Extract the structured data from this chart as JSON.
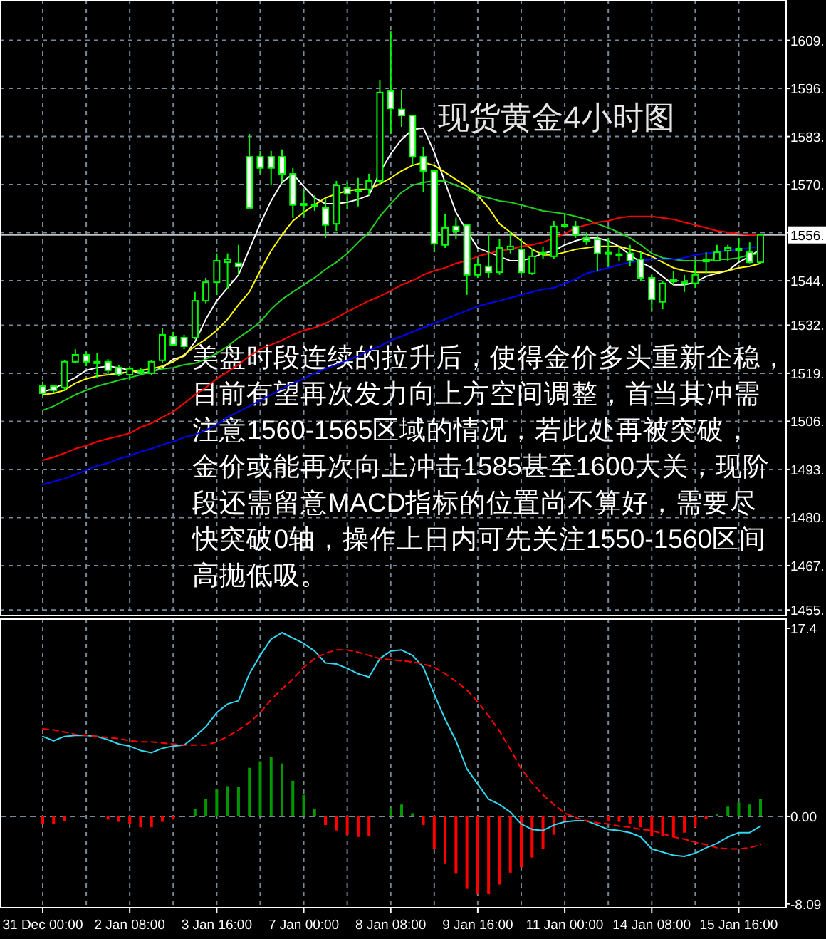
{
  "chart_data": [
    {
      "type": "candlestick",
      "title": "现货黄金4小时图",
      "annotations": [
        "美盘时段连续的拉升后，使得金价多头重新企稳，",
        "目前有望再次发力向上方空间调整，首当其冲需",
        "注意1560-1565区域的情况，若此处再被突破，",
        "金价或能再次向上冲击1585甚至1600大关，现阶",
        "段还需留意MACD指标的位置尚不算好，需要尽",
        "快突破0轴，操作上日内可先关注1550-1560区间",
        "高抛低吸。"
      ],
      "categories": [
        null,
        null,
        null,
        null,
        null,
        null,
        null,
        null,
        null,
        null,
        null,
        null,
        null,
        null,
        null,
        null,
        null,
        null,
        null,
        null,
        null,
        null,
        null,
        null,
        null,
        null,
        null,
        null,
        null,
        null,
        null,
        null,
        null,
        null,
        null,
        null,
        null,
        null,
        null,
        null,
        null,
        null,
        null,
        null,
        null,
        null,
        null,
        null,
        null,
        null,
        null,
        null,
        null,
        null,
        null,
        null,
        null,
        null,
        null,
        null,
        null,
        null,
        null,
        null,
        null,
        null,
        null
      ],
      "ohlc": [
        [
          1515.5,
          1516.7,
          1512.8,
          1513.6
        ],
        [
          1515.5,
          1515.9,
          1513.6,
          1514.4
        ],
        [
          1515.1,
          1522.5,
          1514.4,
          1522.1
        ],
        [
          1522.1,
          1525.5,
          1521.7,
          1524.0
        ],
        [
          1524.0,
          1524.8,
          1520.9,
          1522.1
        ],
        [
          1521.7,
          1524.4,
          1517.8,
          1522.1
        ],
        [
          1522.1,
          1522.8,
          1518.6,
          1519.8
        ],
        [
          1520.5,
          1521.3,
          1518.2,
          1518.6
        ],
        [
          1518.6,
          1520.9,
          1517.1,
          1520.2
        ],
        [
          1519.6,
          1520.5,
          1518.6,
          1519.8
        ],
        [
          1519.0,
          1522.5,
          1518.6,
          1522.1
        ],
        [
          1522.5,
          1531.3,
          1521.7,
          1529.4
        ],
        [
          1529.0,
          1530.2,
          1526.3,
          1526.7
        ],
        [
          1528.6,
          1529.4,
          1525.5,
          1526.3
        ],
        [
          1528.6,
          1541.0,
          1528.2,
          1538.6
        ],
        [
          1538.6,
          1544.8,
          1537.9,
          1543.6
        ],
        [
          1543.6,
          1551.4,
          1540.2,
          1549.4
        ],
        [
          1549.0,
          1551.4,
          1541.7,
          1549.8
        ],
        [
          1548.7,
          1553.7,
          1545.6,
          1547.9
        ],
        [
          1577.5,
          1583.7,
          1563.7,
          1563.7
        ],
        [
          1577.5,
          1579.1,
          1572.9,
          1574.5
        ],
        [
          1577.5,
          1579.1,
          1569.8,
          1574.5
        ],
        [
          1577.5,
          1579.5,
          1570.6,
          1572.9
        ],
        [
          1572.9,
          1574.5,
          1561.0,
          1564.5
        ],
        [
          1564.5,
          1568.7,
          1561.4,
          1564.8
        ],
        [
          1564.5,
          1567.1,
          1562.9,
          1564.1
        ],
        [
          1563.7,
          1566.0,
          1555.6,
          1559.1
        ],
        [
          1559.4,
          1571.0,
          1557.5,
          1569.8
        ],
        [
          1569.1,
          1570.6,
          1563.3,
          1567.5
        ],
        [
          1568.1,
          1571.8,
          1564.1,
          1568.5
        ],
        [
          1568.7,
          1572.9,
          1567.1,
          1571.0
        ],
        [
          1571.0,
          1598.3,
          1569.8,
          1594.9
        ],
        [
          1595.3,
          1611.4,
          1583.7,
          1590.6
        ],
        [
          1590.3,
          1595.7,
          1585.6,
          1588.7
        ],
        [
          1588.7,
          1588.7,
          1575.2,
          1577.5
        ],
        [
          1577.5,
          1580.2,
          1567.9,
          1573.7
        ],
        [
          1573.7,
          1573.7,
          1551.7,
          1554.0
        ],
        [
          1553.7,
          1562.1,
          1552.9,
          1558.3
        ],
        [
          1558.7,
          1561.0,
          1555.2,
          1557.5
        ],
        [
          1559.1,
          1559.1,
          1540.2,
          1545.6
        ],
        [
          1545.6,
          1549.8,
          1544.8,
          1548.3
        ],
        [
          1547.9,
          1556.7,
          1544.8,
          1546.3
        ],
        [
          1546.3,
          1555.2,
          1545.6,
          1552.9
        ],
        [
          1552.5,
          1557.1,
          1551.4,
          1553.3
        ],
        [
          1552.5,
          1555.6,
          1545.6,
          1546.3
        ],
        [
          1546.0,
          1552.5,
          1545.6,
          1550.6
        ],
        [
          1551.2,
          1553.3,
          1549.8,
          1551.6
        ],
        [
          1550.6,
          1560.2,
          1549.8,
          1558.7
        ],
        [
          1558.7,
          1562.1,
          1558.3,
          1559.1
        ],
        [
          1558.7,
          1560.2,
          1555.6,
          1556.4
        ],
        [
          1555.6,
          1557.1,
          1553.7,
          1554.8
        ],
        [
          1555.2,
          1556.4,
          1546.7,
          1551.4
        ],
        [
          1551.2,
          1555.6,
          1547.9,
          1551.6
        ],
        [
          1551.0,
          1553.3,
          1549.4,
          1551.2
        ],
        [
          1551.4,
          1553.7,
          1547.9,
          1549.4
        ],
        [
          1549.8,
          1551.7,
          1544.0,
          1544.8
        ],
        [
          1544.8,
          1545.6,
          1535.9,
          1539.0
        ],
        [
          1538.3,
          1544.0,
          1536.3,
          1543.3
        ],
        [
          1543.8,
          1546.7,
          1542.9,
          1544.2
        ],
        [
          1543.3,
          1545.6,
          1541.0,
          1543.6
        ],
        [
          1543.3,
          1549.4,
          1542.1,
          1545.6
        ],
        [
          1549.2,
          1551.7,
          1546.0,
          1549.6
        ],
        [
          1549.4,
          1553.7,
          1549.4,
          1551.7
        ],
        [
          1552.1,
          1553.7,
          1549.4,
          1552.9
        ],
        [
          1552.3,
          1555.6,
          1549.4,
          1552.7
        ],
        [
          1551.7,
          1554.4,
          1548.7,
          1549.0
        ],
        [
          1549.0,
          1556.4,
          1548.7,
          1556.4
        ]
      ],
      "color": "#00ff00",
      "colors": [
        "#ffffff",
        "#ffffff",
        "#000000",
        "#000000",
        "#ffffff",
        "#000000",
        "#ffffff",
        "#ffffff",
        "#000000",
        "#000000",
        "#000000",
        "#000000",
        "#ffffff",
        "#ffffff",
        "#000000",
        "#000000",
        "#000000",
        "#000000",
        "#ffffff",
        "#ffffff",
        "#ffffff",
        "#ffffff",
        "#ffffff",
        "#ffffff",
        "#000000",
        "#ffffff",
        "#ffffff",
        "#000000",
        "#ffffff",
        "#000000",
        "#000000",
        "#000000",
        "#ffffff",
        "#ffffff",
        "#ffffff",
        "#ffffff",
        "#ffffff",
        "#000000",
        "#ffffff",
        "#ffffff",
        "#000000",
        "#ffffff",
        "#000000",
        "#000000",
        "#ffffff",
        "#000000",
        "#000000",
        "#000000",
        "#000000",
        "#ffffff",
        "#ffffff",
        "#ffffff",
        "#000000",
        "#000000",
        "#ffffff",
        "#ffffff",
        "#ffffff",
        "#000000",
        "#000000",
        "#000000",
        "#000000",
        "#000000",
        "#000000",
        "#000000",
        "#000000",
        "#ffffff",
        "#000000"
      ],
      "series": [
        {
          "type": "line",
          "color": "#ffffff",
          "values": [
            1514.0,
            1514.8,
            1516.3,
            1517.8,
            1519.8,
            1520.5,
            1520.9,
            1520.5,
            1519.8,
            1519.0,
            1519.4,
            1520.5,
            1522.8,
            1523.6,
            1527.5,
            1533.6,
            1538.6,
            1542.1,
            1545.6,
            1552.5,
            1559.4,
            1565.6,
            1570.6,
            1572.9,
            1569.5,
            1566.4,
            1564.8,
            1564.8,
            1565.2,
            1566.0,
            1567.1,
            1573.3,
            1578.3,
            1582.2,
            1584.9,
            1585.3,
            1578.7,
            1570.6,
            1562.5,
            1557.5,
            1552.9,
            1551.7,
            1550.6,
            1549.4,
            1549.4,
            1550.2,
            1551.4,
            1552.1,
            1553.7,
            1554.8,
            1555.6,
            1555.6,
            1554.8,
            1553.3,
            1551.0,
            1549.0,
            1547.5,
            1545.2,
            1542.9,
            1542.9,
            1543.6,
            1545.2,
            1546.0,
            1546.7,
            1549.0,
            1550.6,
            1552.5
          ]
        },
        {
          "type": "line",
          "color": "#ffff00",
          "values": [
            1513.2,
            1513.6,
            1514.4,
            1516.3,
            1517.5,
            1518.2,
            1518.6,
            1519.0,
            1519.4,
            1519.8,
            1520.2,
            1520.9,
            1522.1,
            1524.0,
            1526.3,
            1528.2,
            1530.6,
            1533.6,
            1537.5,
            1541.0,
            1546.7,
            1552.1,
            1556.4,
            1560.2,
            1562.5,
            1564.5,
            1566.4,
            1567.5,
            1568.3,
            1568.7,
            1568.7,
            1570.2,
            1571.8,
            1573.7,
            1575.2,
            1576.0,
            1575.2,
            1573.3,
            1571.4,
            1569.5,
            1567.1,
            1563.7,
            1559.4,
            1557.1,
            1554.8,
            1552.5,
            1551.0,
            1551.0,
            1551.7,
            1552.5,
            1552.9,
            1553.3,
            1553.3,
            1553.3,
            1552.5,
            1551.7,
            1550.6,
            1549.0,
            1547.5,
            1546.7,
            1546.3,
            1546.3,
            1546.3,
            1546.7,
            1547.5,
            1547.9,
            1548.7
          ]
        },
        {
          "type": "line",
          "color": "#22d022",
          "values": [
            1509.0,
            1510.1,
            1511.7,
            1513.2,
            1514.4,
            1515.5,
            1516.3,
            1517.1,
            1517.8,
            1518.6,
            1519.4,
            1520.2,
            1520.5,
            1521.3,
            1521.7,
            1522.8,
            1524.4,
            1526.3,
            1528.6,
            1530.6,
            1532.9,
            1536.3,
            1539.0,
            1541.0,
            1542.9,
            1544.8,
            1547.1,
            1549.0,
            1551.4,
            1554.4,
            1557.1,
            1561.4,
            1564.8,
            1567.9,
            1569.8,
            1570.6,
            1571.0,
            1571.0,
            1569.8,
            1568.7,
            1567.1,
            1566.4,
            1565.6,
            1565.2,
            1564.5,
            1563.7,
            1562.9,
            1562.5,
            1562.1,
            1561.4,
            1560.6,
            1559.4,
            1558.3,
            1557.1,
            1555.6,
            1553.7,
            1551.4,
            1550.2,
            1549.8,
            1549.4,
            1549.4,
            1549.4,
            1549.8,
            1549.8,
            1550.2,
            1551.0,
            1551.4
          ]
        },
        {
          "type": "line",
          "color": "#ff0000",
          "values": [
            1495.5,
            1496.3,
            1497.4,
            1498.6,
            1499.4,
            1500.5,
            1501.3,
            1502.0,
            1502.8,
            1504.4,
            1505.5,
            1507.1,
            1508.6,
            1510.9,
            1513.2,
            1515.1,
            1517.5,
            1519.4,
            1521.3,
            1523.6,
            1525.5,
            1526.7,
            1527.9,
            1529.4,
            1530.6,
            1531.3,
            1532.5,
            1534.0,
            1535.6,
            1537.1,
            1538.6,
            1539.8,
            1541.3,
            1542.9,
            1544.0,
            1545.6,
            1546.7,
            1547.5,
            1548.7,
            1549.4,
            1550.6,
            1551.4,
            1552.1,
            1552.5,
            1553.3,
            1553.7,
            1554.4,
            1555.6,
            1556.7,
            1558.3,
            1559.1,
            1559.8,
            1560.2,
            1561.0,
            1561.4,
            1561.4,
            1561.4,
            1561.0,
            1560.6,
            1559.8,
            1559.1,
            1558.3,
            1557.5,
            1557.1,
            1556.7,
            1556.4,
            1556.4
          ]
        },
        {
          "type": "line",
          "color": "#0000ff",
          "values": [
            1488.9,
            1489.7,
            1490.5,
            1491.6,
            1492.8,
            1494.0,
            1494.7,
            1495.9,
            1496.7,
            1497.8,
            1498.6,
            1499.7,
            1500.5,
            1501.7,
            1502.4,
            1503.6,
            1505.1,
            1507.1,
            1508.6,
            1510.1,
            1511.7,
            1513.2,
            1514.8,
            1516.3,
            1517.5,
            1519.0,
            1520.2,
            1521.3,
            1522.5,
            1523.6,
            1525.2,
            1526.3,
            1527.9,
            1529.0,
            1530.2,
            1531.3,
            1532.5,
            1533.6,
            1534.8,
            1535.9,
            1537.1,
            1537.9,
            1538.6,
            1539.4,
            1540.2,
            1541.0,
            1541.7,
            1542.1,
            1543.3,
            1544.4,
            1546.0,
            1546.7,
            1547.5,
            1548.3,
            1549.0,
            1549.4,
            1549.8,
            1549.8,
            1549.8,
            1550.2,
            1551.0,
            1551.4,
            1551.7,
            1552.1,
            1552.5,
            1552.9,
            1553.3
          ]
        }
      ],
      "ylim": [
        1453.5,
        1619.9
      ],
      "yticks": [
        {
          "value": 1455,
          "label": "1455."
        },
        {
          "value": 1467,
          "label": "1467."
        },
        {
          "value": 1480,
          "label": "1480."
        },
        {
          "value": 1493,
          "label": "1493."
        },
        {
          "value": 1506,
          "label": "1506."
        },
        {
          "value": 1519,
          "label": "1519."
        },
        {
          "value": 1532,
          "label": "1532."
        },
        {
          "value": 1544,
          "label": "1544."
        },
        {
          "value": 1557,
          "label": null
        },
        {
          "value": 1570,
          "label": "1570."
        },
        {
          "value": 1583,
          "label": "1583."
        },
        {
          "value": 1596,
          "label": "1596."
        },
        {
          "value": 1609,
          "label": "1609."
        }
      ],
      "grid": true,
      "tick_labels": "y",
      "ref_lines": [
        {
          "axis": "y",
          "value": 1556.4,
          "label": "1556.",
          "color": "#c0c0c0"
        }
      ]
    },
    {
      "type": "bar",
      "categories": [
        "31 Dec 00:00",
        null,
        null,
        null,
        null,
        null,
        null,
        null,
        "2 Jan 08:00",
        null,
        null,
        null,
        null,
        null,
        null,
        null,
        "3 Jan 16:00",
        null,
        null,
        null,
        null,
        null,
        null,
        null,
        "7 Jan 00:00",
        null,
        null,
        null,
        null,
        null,
        null,
        null,
        "8 Jan 08:00",
        null,
        null,
        null,
        null,
        null,
        null,
        null,
        "9 Jan 16:00",
        null,
        null,
        null,
        null,
        null,
        null,
        null,
        "11 Jan 00:00",
        null,
        null,
        null,
        null,
        null,
        null,
        null,
        "14 Jan 08:00",
        null,
        null,
        null,
        null,
        null,
        null,
        null,
        "15 Jan 16:00",
        null,
        null
      ],
      "series": [
        {
          "values": [
            -0.7,
            -0.7,
            -0.4,
            null,
            null,
            null,
            -0.3,
            -0.5,
            -0.7,
            -1.0,
            -1.0,
            -0.5,
            -0.3,
            null,
            0.7,
            1.6,
            2.5,
            2.8,
            2.7,
            4.5,
            5.1,
            5.5,
            4.9,
            3.3,
            2.0,
            0.7,
            -0.8,
            -1.3,
            -1.7,
            -1.9,
            -1.8,
            null,
            0.8,
            1.1,
            0.3,
            -0.8,
            -3.0,
            -4.4,
            -5.3,
            -6.7,
            -7.2,
            -7.2,
            -6.3,
            -5.2,
            -4.7,
            -3.8,
            -3.0,
            -1.7,
            -0.4,
            null,
            null,
            null,
            -0.4,
            -0.5,
            -0.7,
            -1.0,
            -1.8,
            -1.8,
            -1.8,
            -1.5,
            -1.0,
            -0.2,
            0.2,
            0.9,
            1.3,
            1.1,
            1.6
          ],
          "colors": [
            "#ff0000",
            "#ff0000",
            "#ff0000",
            null,
            null,
            null,
            "#ff0000",
            "#ff0000",
            "#ff0000",
            "#ff0000",
            "#ff0000",
            "#ff0000",
            "#ff0000",
            null,
            "#009900",
            "#009900",
            "#009900",
            "#009900",
            "#009900",
            "#009900",
            "#009900",
            "#009900",
            "#009900",
            "#009900",
            "#009900",
            "#009900",
            "#ff0000",
            "#ff0000",
            "#ff0000",
            "#ff0000",
            "#ff0000",
            null,
            "#009900",
            "#009900",
            "#009900",
            "#ff0000",
            "#ff0000",
            "#ff0000",
            "#ff0000",
            "#ff0000",
            "#ff0000",
            "#ff0000",
            "#ff0000",
            "#ff0000",
            "#ff0000",
            "#ff0000",
            "#ff0000",
            "#ff0000",
            "#ff0000",
            null,
            null,
            null,
            "#ff0000",
            "#ff0000",
            "#ff0000",
            "#ff0000",
            "#ff0000",
            "#ff0000",
            "#ff0000",
            "#ff0000",
            "#ff0000",
            "#ff0000",
            "#009900",
            "#009900",
            "#009900",
            "#009900",
            "#009900"
          ]
        },
        {
          "type": "line",
          "color": "#30d8f0",
          "values": [
            7.4,
            7.0,
            7.4,
            7.5,
            7.5,
            7.4,
            7.1,
            6.7,
            6.5,
            6.1,
            5.9,
            6.3,
            6.5,
            6.6,
            7.4,
            8.3,
            9.6,
            10.4,
            10.7,
            13.2,
            14.9,
            16.4,
            17.0,
            16.5,
            16.0,
            15.3,
            14.2,
            14.1,
            13.7,
            13.2,
            12.9,
            14.6,
            15.3,
            15.4,
            14.9,
            13.8,
            11.3,
            9.0,
            7.0,
            4.4,
            3.0,
            1.6,
            1.1,
            0.4,
            -0.7,
            -1.2,
            -1.3,
            -0.8,
            -0.5,
            -0.4,
            -0.4,
            -0.8,
            -1.2,
            -1.3,
            -1.5,
            -1.9,
            -3.0,
            -3.3,
            -3.6,
            -3.7,
            -3.4,
            -2.9,
            -2.5,
            -1.9,
            -1.5,
            -1.5,
            -0.9
          ]
        },
        {
          "type": "line",
          "color": "#ff0000",
          "line_style": "dashed",
          "values": [
            8.1,
            8.0,
            7.8,
            7.6,
            7.5,
            7.4,
            7.3,
            7.2,
            7.0,
            6.9,
            6.9,
            6.8,
            6.7,
            6.6,
            6.6,
            6.6,
            6.9,
            7.4,
            8.0,
            8.7,
            9.6,
            10.8,
            11.8,
            12.7,
            13.8,
            14.6,
            15.1,
            15.4,
            15.4,
            15.2,
            14.9,
            14.6,
            14.5,
            14.4,
            14.3,
            14.1,
            13.8,
            13.2,
            12.5,
            11.7,
            10.6,
            9.3,
            7.9,
            6.2,
            4.4,
            3.1,
            2.0,
            1.1,
            0.3,
            -0.1,
            -0.4,
            -0.6,
            -0.7,
            -0.9,
            -1.0,
            -1.2,
            -1.3,
            -1.6,
            -1.9,
            -2.1,
            -2.4,
            -2.6,
            -2.9,
            -3.0,
            -3.0,
            -2.9,
            -2.6
          ]
        }
      ],
      "ylim": [
        -8.44,
        18.32
      ],
      "yticks": [
        17.4,
        {
          "value": 0,
          "label": "0.00"
        },
        -8.09
      ],
      "grid": "x",
      "ref_lines": [
        {
          "axis": "y",
          "value": 0,
          "color": "#778899",
          "line_style": "dashed"
        }
      ]
    }
  ]
}
